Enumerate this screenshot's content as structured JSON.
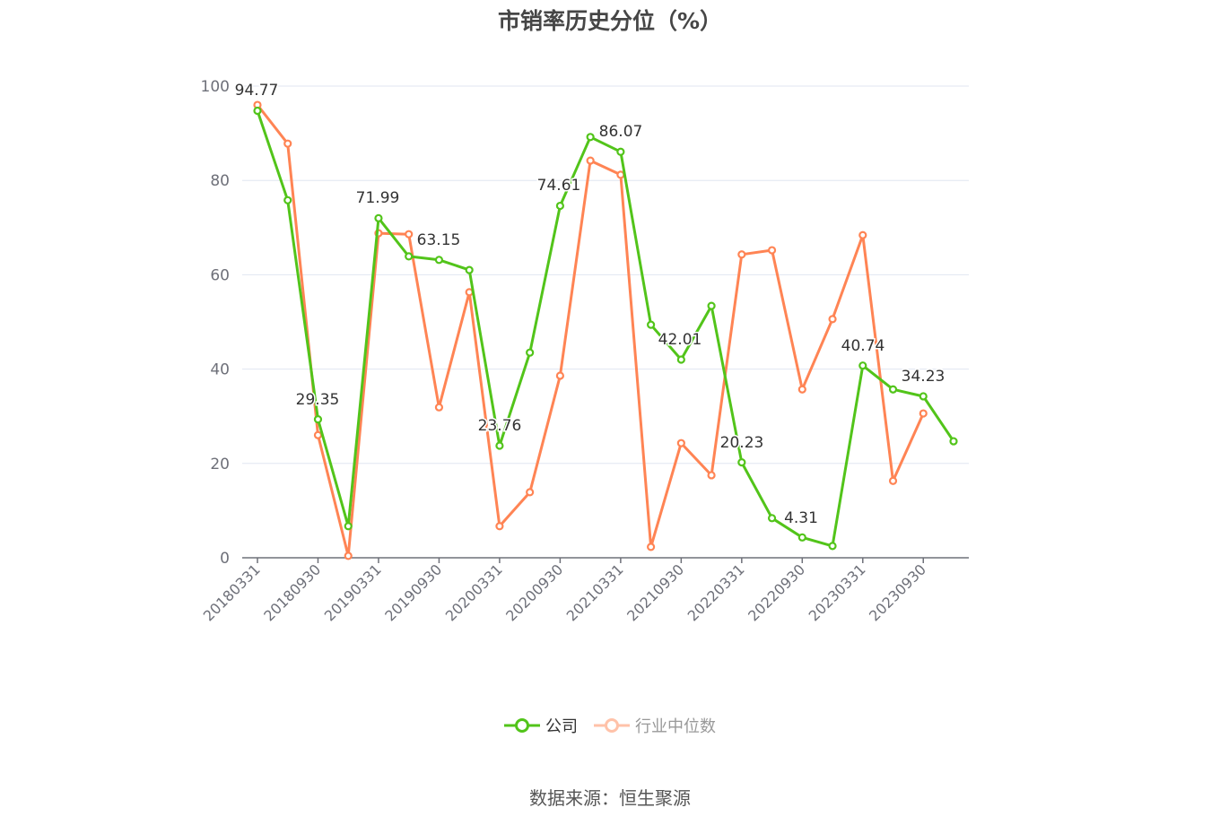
{
  "title": "市销率历史分位（%）",
  "source": "数据来源：恒生聚源",
  "legend": [
    {
      "label": "公司",
      "color": "#52c41a",
      "active": true
    },
    {
      "label": "行业中位数",
      "color": "#ff8454",
      "active": false
    }
  ],
  "chart_data": {
    "type": "line",
    "title": "市销率历史分位（%）",
    "xlabel": "",
    "ylabel": "",
    "ylim": [
      0,
      100
    ],
    "yticks": [
      0,
      20,
      40,
      60,
      80,
      100
    ],
    "grid": true,
    "legend_position": "bottom",
    "x_tick_labels": [
      "20180331",
      "20180930",
      "20190331",
      "20190930",
      "20200331",
      "20200930",
      "20210331",
      "20210930",
      "20220331",
      "20220930",
      "20230331",
      "20230930"
    ],
    "x": [
      "20180331",
      "20180630",
      "20180930",
      "20181231",
      "20190331",
      "20190630",
      "20190930",
      "20191231",
      "20200331",
      "20200630",
      "20200930",
      "20201231",
      "20210331",
      "20210630",
      "20210930",
      "20211231",
      "20220331",
      "20220630",
      "20220930",
      "20221231",
      "20230331",
      "20230630",
      "20230930",
      "20231231"
    ],
    "series": [
      {
        "name": "公司",
        "color": "#52c41a",
        "values": [
          94.77,
          75.8,
          29.35,
          6.7,
          71.99,
          63.9,
          63.15,
          61.0,
          23.76,
          43.5,
          74.61,
          89.2,
          86.07,
          49.4,
          42.01,
          53.4,
          20.23,
          8.4,
          4.31,
          2.5,
          40.74,
          35.7,
          34.23,
          24.7
        ],
        "labels": {
          "0": "94.77",
          "2": "29.35",
          "4": "71.99",
          "6": "63.15",
          "8": "23.76",
          "10": "74.61",
          "12": "86.07",
          "14": "42.01",
          "16": "20.23",
          "18": "4.31",
          "20": "40.74",
          "22": "34.23"
        }
      },
      {
        "name": "行业中位数",
        "color": "#ff8454",
        "values": [
          96.0,
          87.8,
          26.0,
          0.4,
          68.8,
          68.6,
          31.9,
          56.3,
          6.7,
          13.9,
          38.6,
          84.2,
          81.2,
          2.3,
          24.3,
          17.5,
          64.3,
          65.2,
          35.7,
          50.6,
          68.4,
          16.3,
          30.6,
          null
        ]
      }
    ]
  }
}
